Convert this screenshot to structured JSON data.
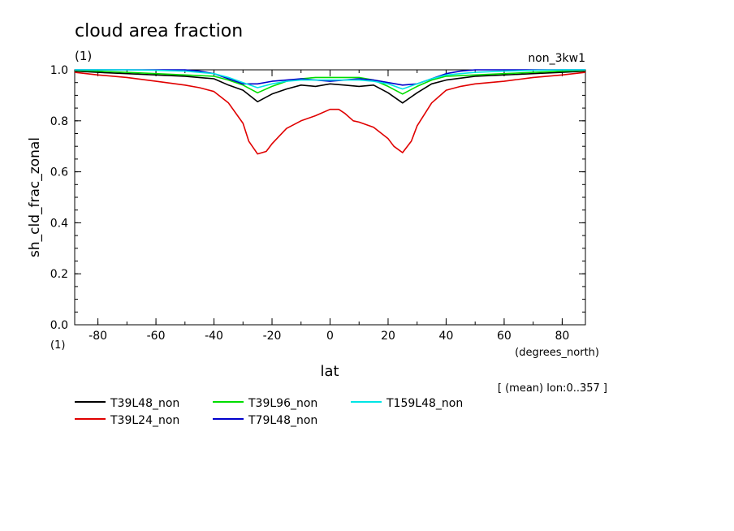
{
  "chart_data": {
    "type": "line",
    "title": "cloud area fraction",
    "title_units": "(1)",
    "subtitle_right": "non_3kw1",
    "xlabel": "lat",
    "x_units": "(degrees_north)",
    "ylabel": "sh_cld_frac_zonal",
    "y_units": "(1)",
    "note": "[ (mean) lon:0..357 ]",
    "xlim": [
      -88,
      88
    ],
    "ylim": [
      0,
      1
    ],
    "x_ticks": [
      -80,
      -60,
      -40,
      -20,
      0,
      20,
      40,
      60,
      80
    ],
    "x_tick_labels": [
      "-80",
      "-60",
      "-40",
      "-20",
      "0",
      "20",
      "40",
      "60",
      "80"
    ],
    "y_ticks": [
      0.0,
      0.2,
      0.4,
      0.6,
      0.8,
      1.0
    ],
    "y_tick_labels": [
      "0.0",
      "0.2",
      "0.4",
      "0.6",
      "0.8",
      "1.0"
    ],
    "grid": false,
    "legend_placement": "bottom",
    "series": [
      {
        "name": "T39L48_non",
        "color": "#000000",
        "x": [
          -88,
          -80,
          -70,
          -60,
          -50,
          -40,
          -35,
          -30,
          -25,
          -20,
          -15,
          -10,
          -5,
          0,
          5,
          10,
          15,
          20,
          25,
          30,
          35,
          40,
          50,
          60,
          70,
          80,
          88
        ],
        "y": [
          0.995,
          0.99,
          0.985,
          0.98,
          0.975,
          0.965,
          0.94,
          0.92,
          0.875,
          0.905,
          0.925,
          0.94,
          0.935,
          0.945,
          0.94,
          0.935,
          0.94,
          0.91,
          0.87,
          0.91,
          0.945,
          0.96,
          0.975,
          0.98,
          0.985,
          0.99,
          0.995
        ]
      },
      {
        "name": "T39L24_non",
        "color": "#e00000",
        "x": [
          -88,
          -80,
          -70,
          -60,
          -50,
          -45,
          -40,
          -35,
          -30,
          -28,
          -25,
          -22,
          -20,
          -15,
          -10,
          -5,
          0,
          3,
          5,
          8,
          10,
          15,
          20,
          22,
          25,
          28,
          30,
          35,
          40,
          45,
          50,
          60,
          70,
          80,
          88
        ],
        "y": [
          0.99,
          0.98,
          0.97,
          0.955,
          0.94,
          0.93,
          0.915,
          0.87,
          0.79,
          0.72,
          0.67,
          0.68,
          0.71,
          0.77,
          0.8,
          0.82,
          0.845,
          0.845,
          0.83,
          0.8,
          0.795,
          0.775,
          0.73,
          0.7,
          0.675,
          0.72,
          0.78,
          0.87,
          0.92,
          0.935,
          0.945,
          0.955,
          0.97,
          0.98,
          0.99
        ]
      },
      {
        "name": "T39L96_non",
        "color": "#00dd00",
        "x": [
          -88,
          -80,
          -70,
          -60,
          -50,
          -40,
          -35,
          -30,
          -25,
          -20,
          -15,
          -10,
          -5,
          0,
          5,
          10,
          15,
          20,
          25,
          30,
          35,
          40,
          50,
          60,
          70,
          80,
          88
        ],
        "y": [
          0.998,
          0.995,
          0.99,
          0.985,
          0.98,
          0.975,
          0.96,
          0.94,
          0.91,
          0.935,
          0.955,
          0.965,
          0.97,
          0.97,
          0.97,
          0.97,
          0.96,
          0.935,
          0.905,
          0.935,
          0.96,
          0.975,
          0.98,
          0.985,
          0.99,
          0.995,
          0.998
        ]
      },
      {
        "name": "T79L48_non",
        "color": "#0000cc",
        "x": [
          -88,
          -80,
          -70,
          -60,
          -50,
          -45,
          -40,
          -35,
          -30,
          -25,
          -20,
          -15,
          -10,
          -5,
          0,
          5,
          10,
          15,
          20,
          25,
          30,
          35,
          40,
          45,
          50,
          60,
          70,
          80,
          88
        ],
        "y": [
          1.0,
          1.0,
          1.0,
          1.0,
          1.0,
          0.995,
          0.985,
          0.965,
          0.945,
          0.945,
          0.955,
          0.96,
          0.965,
          0.96,
          0.955,
          0.96,
          0.965,
          0.96,
          0.95,
          0.94,
          0.945,
          0.965,
          0.985,
          0.995,
          1.0,
          1.0,
          1.0,
          1.0,
          1.0
        ]
      },
      {
        "name": "T159L48_non",
        "color": "#00e5e5",
        "x": [
          -88,
          -80,
          -70,
          -60,
          -50,
          -40,
          -35,
          -30,
          -25,
          -20,
          -15,
          -10,
          -5,
          0,
          5,
          10,
          15,
          20,
          25,
          30,
          35,
          40,
          50,
          60,
          70,
          80,
          88
        ],
        "y": [
          1.0,
          1.0,
          1.0,
          0.998,
          0.995,
          0.985,
          0.97,
          0.95,
          0.93,
          0.945,
          0.955,
          0.96,
          0.96,
          0.96,
          0.96,
          0.96,
          0.955,
          0.945,
          0.925,
          0.945,
          0.965,
          0.98,
          0.99,
          0.995,
          0.998,
          1.0,
          1.0
        ]
      }
    ]
  }
}
